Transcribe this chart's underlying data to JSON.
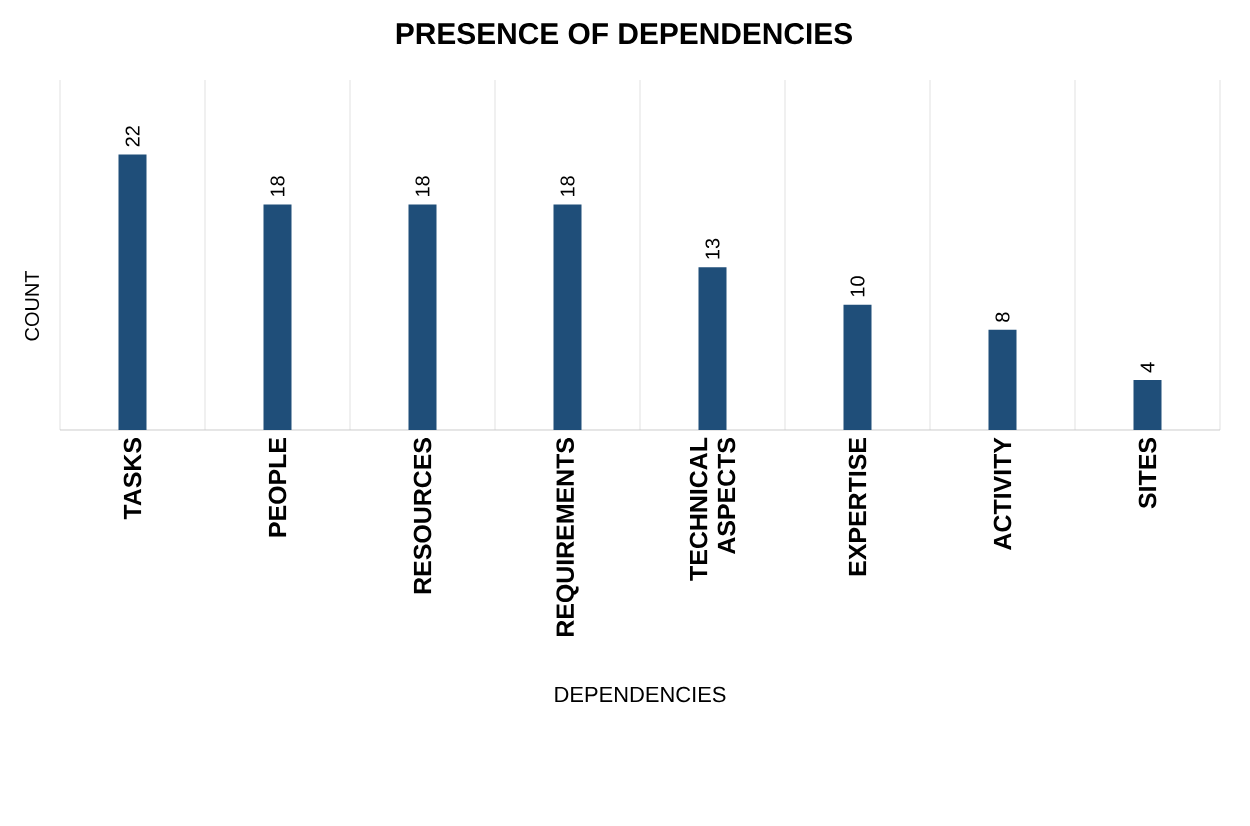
{
  "chart_data": {
    "type": "bar",
    "title": "PRESENCE OF DEPENDENCIES",
    "xlabel": "DEPENDENCIES",
    "ylabel": "COUNT",
    "categories": [
      "TASKS",
      "PEOPLE",
      "RESOURCES",
      "REQUIREMENTS",
      "TECHNICAL ASPECTS",
      "EXPERTISE",
      "ACTIVITY",
      "SITES"
    ],
    "values": [
      22,
      18,
      18,
      18,
      13,
      10,
      8,
      4
    ],
    "color": "#1f4e79",
    "data_labels": true,
    "grid": "x"
  }
}
